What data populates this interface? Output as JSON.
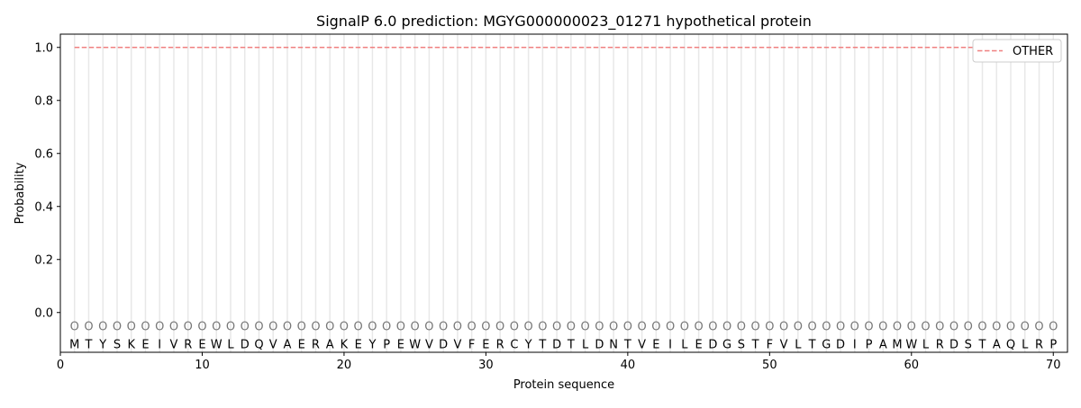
{
  "chart_data": {
    "type": "line",
    "title": "SignalP 6.0 prediction: MGYG000000023_01271 hypothetical protein",
    "xlabel": "Protein sequence",
    "ylabel": "Probability",
    "xlim": [
      0,
      71
    ],
    "ylim": [
      -0.15,
      1.05
    ],
    "xticks": [
      0,
      10,
      20,
      30,
      40,
      50,
      60,
      70
    ],
    "yticks": [
      0.0,
      0.2,
      0.4,
      0.6,
      0.8,
      1.0
    ],
    "ytick_labels": [
      "0.0",
      "0.2",
      "0.4",
      "0.6",
      "0.8",
      "1.0"
    ],
    "sequence": "MTYSKEIVREWLDQVAERAKEYPEWVDVFERCYTDTLDNTVEILEDGSTFVLTGDIPAMWLRDSTAQLRP",
    "region_marker": "O",
    "series": [
      {
        "name": "OTHER",
        "color": "#f08080",
        "style": "dashed",
        "x_start": 1,
        "x_end": 70,
        "value": 1.0
      }
    ],
    "legend_position": "top-right",
    "grid": "vertical lines at each residue"
  }
}
